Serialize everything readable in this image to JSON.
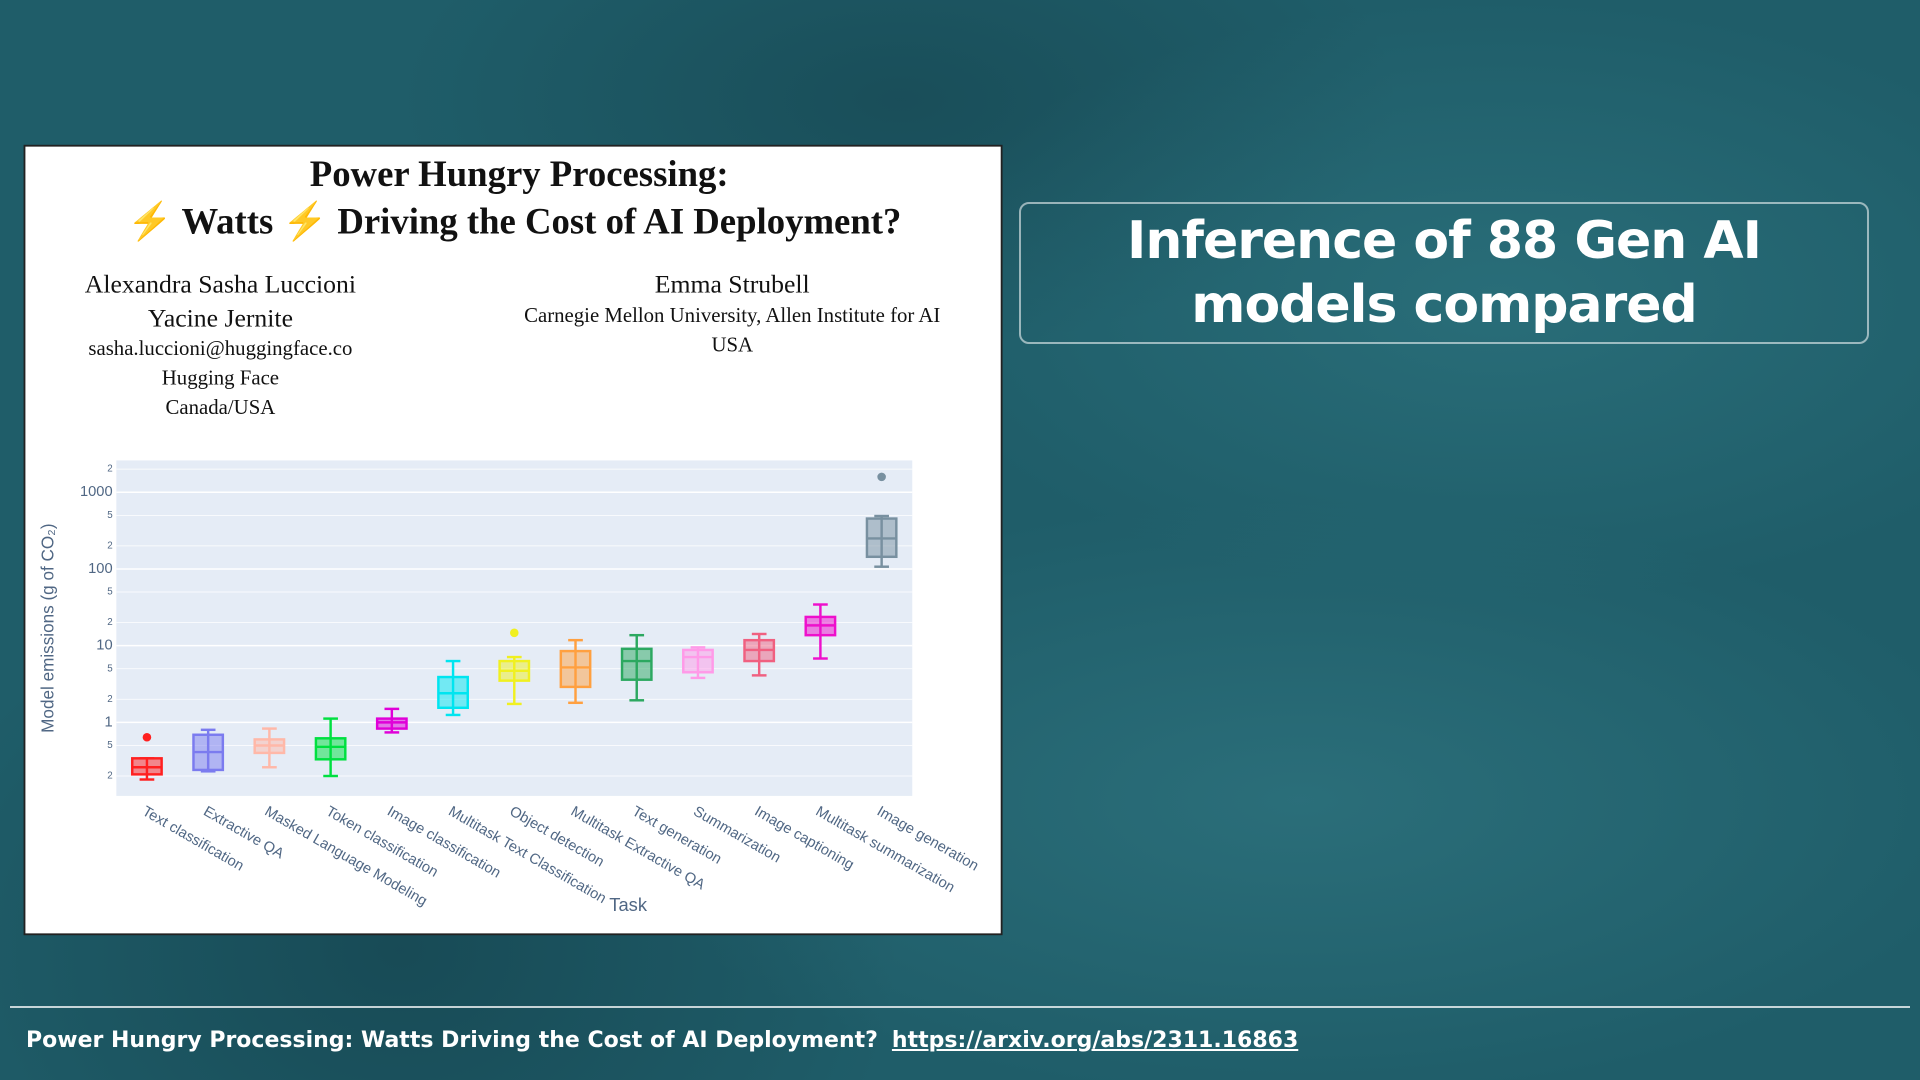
{
  "slide_title": "Inference of 88 Gen AI models compared",
  "paper": {
    "title_line1": "Power Hungry Processing:",
    "title_line2": "⚡ Watts ⚡ Driving the Cost of AI Deployment?",
    "authors_left": [
      "Alexandra Sasha Luccioni",
      "Yacine Jernite",
      "sasha.luccioni@huggingface.co",
      "Hugging Face",
      "Canada/USA"
    ],
    "authors_right": [
      "Emma Strubell",
      "Carnegie Mellon University, Allen Institute for AI",
      "USA"
    ]
  },
  "chart_data": {
    "type": "box",
    "x_label": "Task",
    "y_label": "Model emissions (g of CO₂)",
    "log_y": true,
    "grid": true,
    "ylim": [
      0.11,
      2600
    ],
    "yticks": [
      {
        "value": 2000,
        "label": "2"
      },
      1000,
      {
        "value": 500,
        "label": "5"
      },
      {
        "value": 200,
        "label": "2"
      },
      100,
      {
        "value": 50,
        "label": "5"
      },
      {
        "value": 20,
        "label": "2"
      },
      10,
      {
        "value": 5,
        "label": "5"
      },
      {
        "value": 2,
        "label": "2"
      },
      1,
      {
        "value": 0.5,
        "label": "5"
      },
      {
        "value": 0.2,
        "label": "2"
      }
    ],
    "categories": [
      "Text classification",
      "Extractive QA",
      "Masked Language Modeling",
      "Token classification",
      "Image classification",
      "Multitask Text Classification",
      "Object detection",
      "Multitask Extractive QA",
      "Text generation",
      "Summarization",
      "Image captioning",
      "Multitask summarization",
      "Image generation"
    ],
    "boxes": [
      {
        "color": "#ff2020",
        "min": 0.18,
        "q1": 0.21,
        "median": 0.26,
        "q3": 0.34,
        "max": 0.34,
        "outliers": [
          0.64
        ]
      },
      {
        "color": "#7b7bef",
        "min": 0.23,
        "q1": 0.24,
        "median": 0.41,
        "q3": 0.69,
        "max": 0.8,
        "outliers": []
      },
      {
        "color": "#ffb8a8",
        "min": 0.26,
        "q1": 0.4,
        "median": 0.5,
        "q3": 0.6,
        "max": 0.83,
        "outliers": []
      },
      {
        "color": "#00e040",
        "min": 0.2,
        "q1": 0.33,
        "median": 0.48,
        "q3": 0.62,
        "max": 1.12,
        "outliers": []
      },
      {
        "color": "#e000d8",
        "min": 0.74,
        "q1": 0.83,
        "median": 1.0,
        "q3": 1.12,
        "max": 1.5,
        "outliers": []
      },
      {
        "color": "#00e5f0",
        "min": 1.25,
        "q1": 1.55,
        "median": 2.4,
        "q3": 3.9,
        "max": 6.3,
        "outliers": []
      },
      {
        "color": "#f0f020",
        "min": 1.74,
        "q1": 3.5,
        "median": 4.7,
        "q3": 6.3,
        "max": 7.1,
        "outliers": [
          14.7
        ]
      },
      {
        "color": "#ffa040",
        "min": 1.8,
        "q1": 2.9,
        "median": 5.2,
        "q3": 8.5,
        "max": 11.8,
        "outliers": []
      },
      {
        "color": "#2ca860",
        "min": 1.94,
        "q1": 3.6,
        "median": 6.3,
        "q3": 9.1,
        "max": 13.7,
        "outliers": []
      },
      {
        "color": "#ff9ae8",
        "min": 3.8,
        "q1": 4.5,
        "median": 7.1,
        "q3": 8.8,
        "max": 9.5,
        "outliers": []
      },
      {
        "color": "#f06080",
        "min": 4.1,
        "q1": 6.3,
        "median": 8.8,
        "q3": 11.8,
        "max": 14.2,
        "outliers": []
      },
      {
        "color": "#ee10cc",
        "min": 6.8,
        "q1": 13.7,
        "median": 18.4,
        "q3": 23.7,
        "max": 34.4,
        "outliers": []
      },
      {
        "color": "#7890a0",
        "min": 107,
        "q1": 144,
        "median": 250,
        "q3": 454,
        "max": 490,
        "outliers": [
          1585
        ]
      }
    ]
  },
  "footer": {
    "text": "Power Hungry Processing: Watts Driving the Cost of AI Deployment?",
    "link": "https://arxiv.org/abs/2311.16863"
  }
}
